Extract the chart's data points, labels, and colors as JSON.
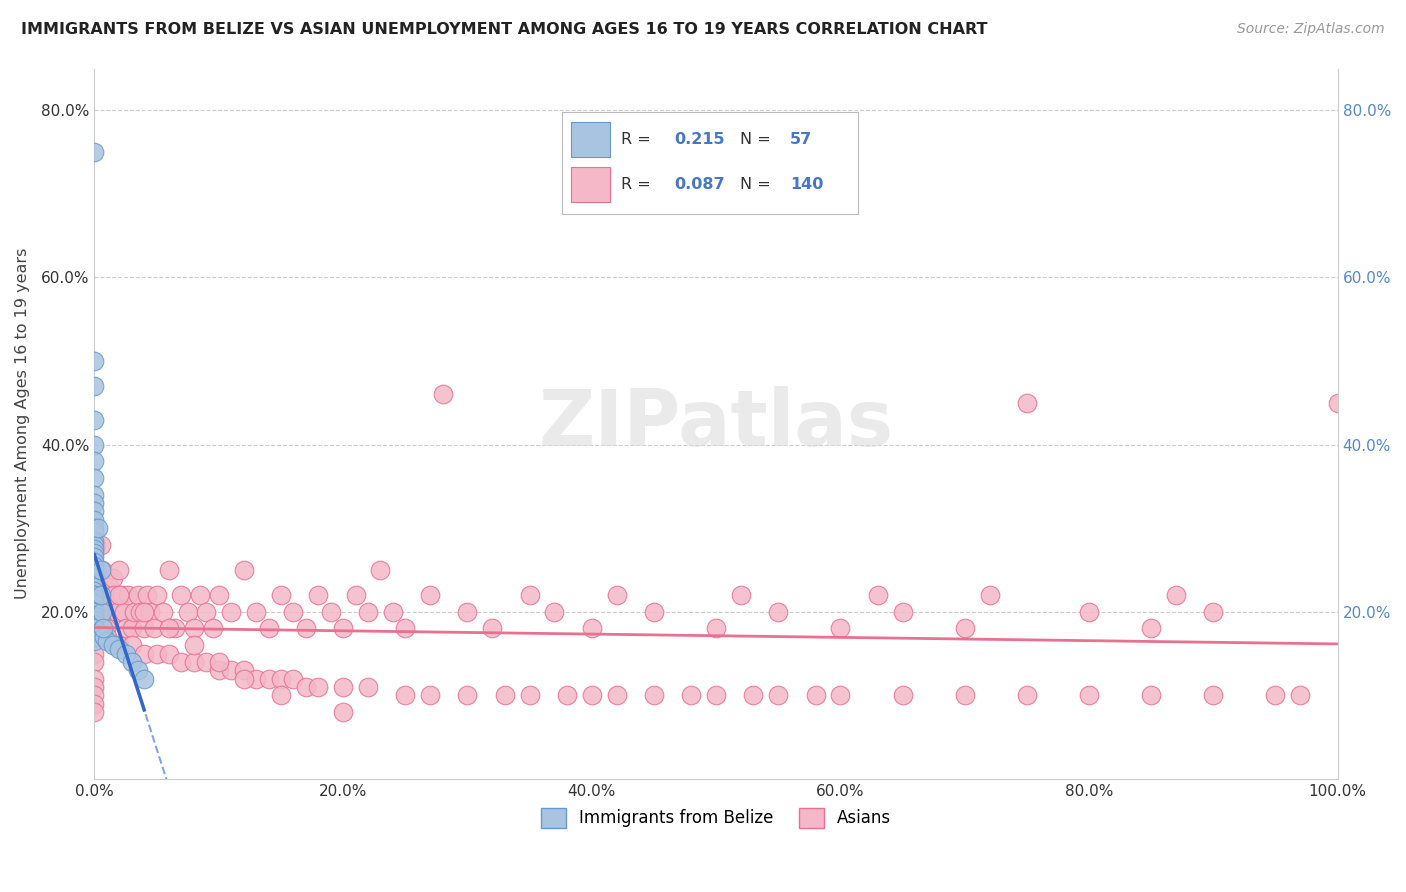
{
  "title": "IMMIGRANTS FROM BELIZE VS ASIAN UNEMPLOYMENT AMONG AGES 16 TO 19 YEARS CORRELATION CHART",
  "source": "Source: ZipAtlas.com",
  "ylabel": "Unemployment Among Ages 16 to 19 years",
  "xlim": [
    0.0,
    1.0
  ],
  "ylim": [
    0.0,
    0.85
  ],
  "xticks": [
    0.0,
    0.2,
    0.4,
    0.6,
    0.8,
    1.0
  ],
  "xticklabels": [
    "0.0%",
    "20.0%",
    "40.0%",
    "60.0%",
    "80.0%",
    "100.0%"
  ],
  "ytick_positions": [
    0.0,
    0.2,
    0.4,
    0.6,
    0.8
  ],
  "yticklabels": [
    "",
    "20.0%",
    "40.0%",
    "60.0%",
    "80.0%"
  ],
  "right_ytick_positions": [
    0.2,
    0.4,
    0.6,
    0.8
  ],
  "right_yticklabels": [
    "20.0%",
    "40.0%",
    "60.0%",
    "80.0%"
  ],
  "blue_color": "#a8c4e0",
  "blue_edge_color": "#6699cc",
  "pink_color": "#f4b8c8",
  "pink_edge_color": "#e87090",
  "blue_line_color": "#3366cc",
  "pink_line_color": "#e87090",
  "legend_label1": "Immigrants from Belize",
  "legend_label2": "Asians",
  "blue_scatter_x": [
    0.0,
    0.0,
    0.0,
    0.0,
    0.0,
    0.0,
    0.0,
    0.0,
    0.0,
    0.0,
    0.0,
    0.0,
    0.0,
    0.0,
    0.0,
    0.0,
    0.0,
    0.0,
    0.0,
    0.0,
    0.0,
    0.0,
    0.0,
    0.0,
    0.0,
    0.0,
    0.0,
    0.0,
    0.0,
    0.0,
    0.0,
    0.0,
    0.0,
    0.0,
    0.0,
    0.0,
    0.0,
    0.0,
    0.0,
    0.0,
    0.0,
    0.0,
    0.0,
    0.0,
    0.003,
    0.005,
    0.006,
    0.008,
    0.01,
    0.015,
    0.02,
    0.025,
    0.03,
    0.035,
    0.04,
    0.005,
    0.007
  ],
  "blue_scatter_y": [
    0.75,
    0.5,
    0.47,
    0.43,
    0.4,
    0.38,
    0.36,
    0.34,
    0.33,
    0.32,
    0.31,
    0.3,
    0.295,
    0.285,
    0.28,
    0.275,
    0.27,
    0.265,
    0.26,
    0.255,
    0.25,
    0.245,
    0.24,
    0.235,
    0.23,
    0.225,
    0.22,
    0.22,
    0.215,
    0.21,
    0.21,
    0.2,
    0.2,
    0.195,
    0.195,
    0.19,
    0.19,
    0.185,
    0.18,
    0.18,
    0.175,
    0.17,
    0.17,
    0.165,
    0.3,
    0.25,
    0.2,
    0.17,
    0.165,
    0.16,
    0.155,
    0.15,
    0.14,
    0.13,
    0.12,
    0.22,
    0.18
  ],
  "pink_scatter_x": [
    0.0,
    0.0,
    0.0,
    0.0,
    0.001,
    0.002,
    0.003,
    0.004,
    0.005,
    0.006,
    0.007,
    0.008,
    0.009,
    0.01,
    0.012,
    0.013,
    0.015,
    0.016,
    0.018,
    0.02,
    0.022,
    0.024,
    0.025,
    0.027,
    0.03,
    0.032,
    0.035,
    0.037,
    0.04,
    0.042,
    0.045,
    0.048,
    0.05,
    0.055,
    0.06,
    0.065,
    0.07,
    0.075,
    0.08,
    0.085,
    0.09,
    0.095,
    0.1,
    0.11,
    0.12,
    0.13,
    0.14,
    0.15,
    0.16,
    0.17,
    0.18,
    0.19,
    0.2,
    0.21,
    0.22,
    0.23,
    0.24,
    0.25,
    0.27,
    0.28,
    0.3,
    0.32,
    0.35,
    0.37,
    0.4,
    0.42,
    0.45,
    0.5,
    0.52,
    0.55,
    0.6,
    0.63,
    0.65,
    0.7,
    0.72,
    0.75,
    0.8,
    0.85,
    0.87,
    0.9,
    0.0,
    0.0,
    0.005,
    0.01,
    0.02,
    0.03,
    0.04,
    0.05,
    0.06,
    0.07,
    0.08,
    0.09,
    0.1,
    0.11,
    0.12,
    0.13,
    0.14,
    0.15,
    0.16,
    0.17,
    0.18,
    0.2,
    0.22,
    0.25,
    0.27,
    0.3,
    0.33,
    0.35,
    0.38,
    0.4,
    0.42,
    0.45,
    0.48,
    0.5,
    0.53,
    0.55,
    0.58,
    0.6,
    0.65,
    0.7,
    0.75,
    0.8,
    0.85,
    0.9,
    0.95,
    0.97,
    1.0,
    0.0,
    0.0,
    0.0,
    0.0,
    0.0,
    0.02,
    0.04,
    0.06,
    0.08,
    0.1,
    0.12,
    0.15,
    0.2
  ],
  "pink_scatter_y": [
    0.25,
    0.22,
    0.2,
    0.18,
    0.28,
    0.25,
    0.22,
    0.2,
    0.28,
    0.25,
    0.22,
    0.2,
    0.18,
    0.17,
    0.23,
    0.21,
    0.24,
    0.22,
    0.2,
    0.25,
    0.22,
    0.2,
    0.18,
    0.22,
    0.18,
    0.2,
    0.22,
    0.2,
    0.18,
    0.22,
    0.2,
    0.18,
    0.22,
    0.2,
    0.25,
    0.18,
    0.22,
    0.2,
    0.18,
    0.22,
    0.2,
    0.18,
    0.22,
    0.2,
    0.25,
    0.2,
    0.18,
    0.22,
    0.2,
    0.18,
    0.22,
    0.2,
    0.18,
    0.22,
    0.2,
    0.25,
    0.2,
    0.18,
    0.22,
    0.46,
    0.2,
    0.18,
    0.22,
    0.2,
    0.18,
    0.22,
    0.2,
    0.18,
    0.22,
    0.2,
    0.18,
    0.22,
    0.2,
    0.18,
    0.22,
    0.45,
    0.2,
    0.18,
    0.22,
    0.2,
    0.15,
    0.14,
    0.17,
    0.17,
    0.16,
    0.16,
    0.15,
    0.15,
    0.15,
    0.14,
    0.14,
    0.14,
    0.13,
    0.13,
    0.13,
    0.12,
    0.12,
    0.12,
    0.12,
    0.11,
    0.11,
    0.11,
    0.11,
    0.1,
    0.1,
    0.1,
    0.1,
    0.1,
    0.1,
    0.1,
    0.1,
    0.1,
    0.1,
    0.1,
    0.1,
    0.1,
    0.1,
    0.1,
    0.1,
    0.1,
    0.1,
    0.1,
    0.1,
    0.1,
    0.1,
    0.1,
    0.45,
    0.12,
    0.11,
    0.1,
    0.09,
    0.08,
    0.22,
    0.2,
    0.18,
    0.16,
    0.14,
    0.12,
    0.1,
    0.08
  ]
}
